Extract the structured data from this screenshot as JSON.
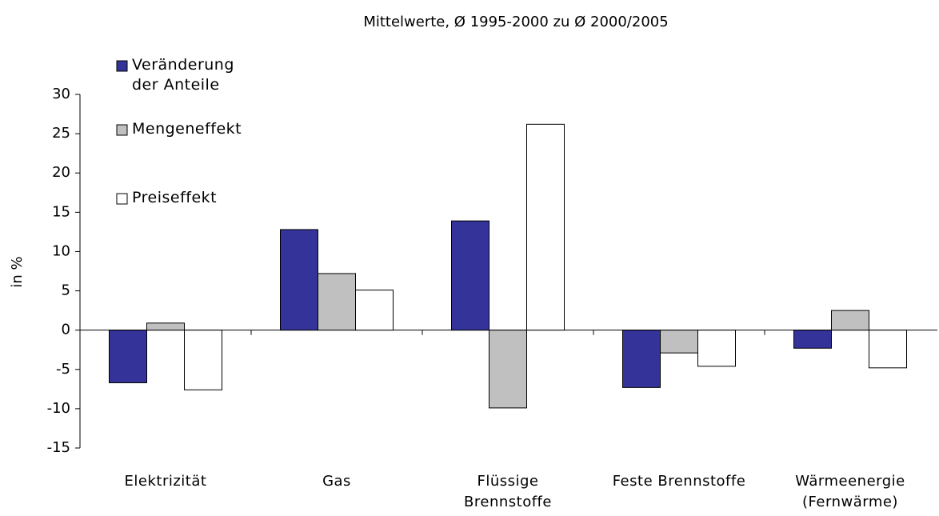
{
  "chart_data": {
    "type": "bar",
    "title": "Mittelwerte, Ø 1995-2000 zu Ø 2000/2005",
    "y_label": "in %",
    "categories": [
      "Elektrizität",
      "Gas",
      "Flüssige\nBrennstoffe",
      "Feste Brennstoffe",
      "Wärmeenergie\n(Fernwärme)"
    ],
    "series": [
      {
        "name": "Veränderung\nder Anteile",
        "color": "#333399",
        "values": [
          -6.7,
          12.8,
          13.9,
          -7.3,
          -2.3
        ]
      },
      {
        "name": "Mengeneffekt",
        "color": "#c0c0c0",
        "values": [
          0.9,
          7.2,
          -9.9,
          -2.9,
          2.5
        ]
      },
      {
        "name": "Preiseffekt",
        "color": "#ffffff",
        "values": [
          -7.6,
          5.1,
          26.2,
          -4.6,
          -4.8
        ]
      }
    ],
    "ylim": [
      -15,
      30
    ],
    "yticks": [
      -15,
      -10,
      -5,
      0,
      5,
      10,
      15,
      20,
      25,
      30
    ],
    "legend": "top-left"
  }
}
